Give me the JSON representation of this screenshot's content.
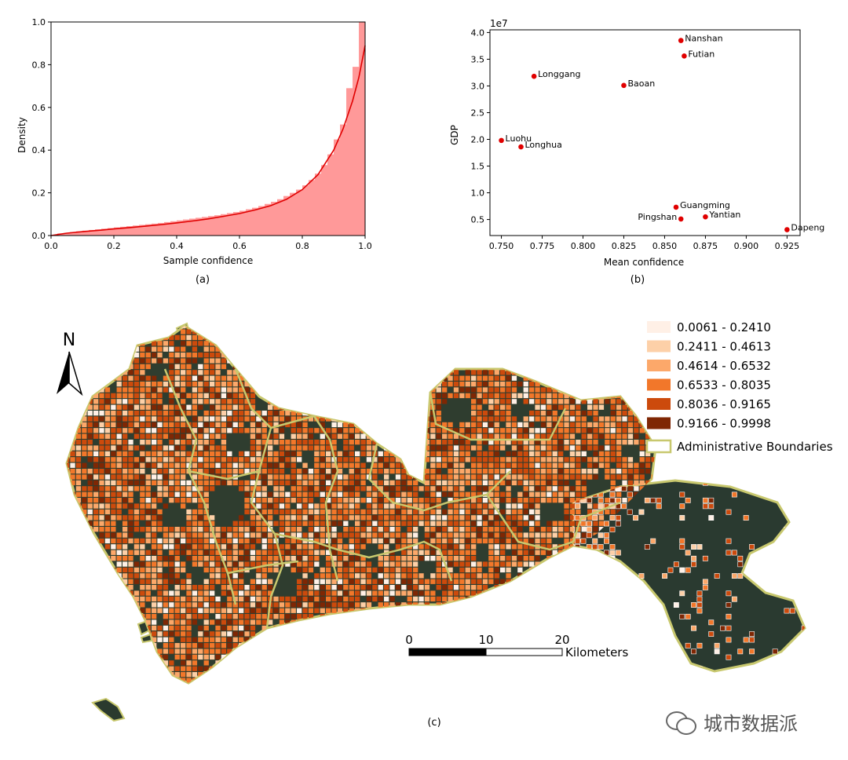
{
  "panels": {
    "a": {
      "caption": "(a)"
    },
    "b": {
      "caption": "(b)"
    },
    "c": {
      "caption": "(c)"
    }
  },
  "chart_data": [
    {
      "type": "area",
      "panel": "a",
      "xlabel": "Sample confidence",
      "ylabel": "Density",
      "xlim": [
        0,
        1
      ],
      "ylim": [
        0,
        1.0
      ],
      "xticks": [
        "0.0",
        "0.2",
        "0.4",
        "0.6",
        "0.8",
        "1.0"
      ],
      "yticks": [
        "0.0",
        "0.2",
        "0.4",
        "0.6",
        "0.8",
        "1.0"
      ],
      "hist_color": "#ff9999",
      "kde_color": "#e00000",
      "histogram": {
        "bin_width": 0.02,
        "values": [
          0.0,
          0.01,
          0.012,
          0.016,
          0.02,
          0.023,
          0.026,
          0.029,
          0.032,
          0.035,
          0.038,
          0.041,
          0.044,
          0.047,
          0.05,
          0.053,
          0.056,
          0.059,
          0.063,
          0.067,
          0.071,
          0.075,
          0.079,
          0.083,
          0.087,
          0.091,
          0.095,
          0.1,
          0.105,
          0.11,
          0.116,
          0.123,
          0.13,
          0.138,
          0.148,
          0.158,
          0.17,
          0.185,
          0.2,
          0.215,
          0.235,
          0.26,
          0.29,
          0.33,
          0.38,
          0.45,
          0.52,
          0.6,
          0.7,
          0.82
        ]
      },
      "kde": {
        "x": [
          0.0,
          0.05,
          0.1,
          0.15,
          0.2,
          0.25,
          0.3,
          0.35,
          0.4,
          0.45,
          0.5,
          0.55,
          0.6,
          0.65,
          0.7,
          0.75,
          0.8,
          0.85,
          0.9,
          0.93,
          0.96,
          0.98,
          1.0
        ],
        "y": [
          0.0,
          0.011,
          0.018,
          0.024,
          0.031,
          0.037,
          0.044,
          0.051,
          0.059,
          0.068,
          0.078,
          0.09,
          0.103,
          0.12,
          0.14,
          0.17,
          0.215,
          0.285,
          0.4,
          0.5,
          0.63,
          0.74,
          0.89
        ]
      },
      "extra_bars": [
        {
          "x": 0.99,
          "value": 1.0
        },
        {
          "x": 0.97,
          "value": 0.79
        },
        {
          "x": 0.95,
          "value": 0.69
        }
      ]
    },
    {
      "type": "scatter",
      "panel": "b",
      "xlabel": "Mean confidence",
      "ylabel": "GDP",
      "y_offset_label": "1e7",
      "xlim": [
        0.743,
        0.933
      ],
      "ylim": [
        0.2,
        4.05
      ],
      "xticks": [
        "0.750",
        "0.775",
        "0.800",
        "0.825",
        "0.850",
        "0.875",
        "0.900",
        "0.925"
      ],
      "yticks": [
        "0.5",
        "1.0",
        "1.5",
        "2.0",
        "2.5",
        "3.0",
        "3.5",
        "4.0"
      ],
      "point_color": "#e00000",
      "points": [
        {
          "label": "Nanshan",
          "x": 0.86,
          "y": 3.85,
          "label_pos": "right"
        },
        {
          "label": "Futian",
          "x": 0.862,
          "y": 3.56,
          "label_pos": "right"
        },
        {
          "label": "Longgang",
          "x": 0.77,
          "y": 3.18,
          "label_pos": "right"
        },
        {
          "label": "Baoan",
          "x": 0.825,
          "y": 3.01,
          "label_pos": "right"
        },
        {
          "label": "Luohu",
          "x": 0.75,
          "y": 1.98,
          "label_pos": "right"
        },
        {
          "label": "Longhua",
          "x": 0.762,
          "y": 1.86,
          "label_pos": "right"
        },
        {
          "label": "Guangming",
          "x": 0.857,
          "y": 0.73,
          "label_pos": "right"
        },
        {
          "label": "Pingshan",
          "x": 0.86,
          "y": 0.51,
          "label_pos": "left"
        },
        {
          "label": "Yantian",
          "x": 0.875,
          "y": 0.55,
          "label_pos": "right"
        },
        {
          "label": "Dapeng",
          "x": 0.925,
          "y": 0.31,
          "label_pos": "right"
        }
      ]
    }
  ],
  "map": {
    "north_label": "N",
    "legend": [
      {
        "label": "0.0061 - 0.2410",
        "color": "#fff0e6"
      },
      {
        "label": "0.2411 - 0.4613",
        "color": "#fdd0a8"
      },
      {
        "label": "0.4614 - 0.6532",
        "color": "#fca86a"
      },
      {
        "label": "0.6533 - 0.8035",
        "color": "#f2772a"
      },
      {
        "label": "0.8036 - 0.9165",
        "color": "#cc4a0c"
      },
      {
        "label": "0.9166 - 0.9998",
        "color": "#7f2704"
      }
    ],
    "boundary_label": "Administrative Boundaries",
    "boundary_color": "#c8c86e",
    "scale_ticks": [
      "0",
      "10",
      "20"
    ],
    "scale_unit": "Kilometers"
  },
  "watermark": {
    "text": "城市数据派",
    "icon": "wechat-icon"
  }
}
